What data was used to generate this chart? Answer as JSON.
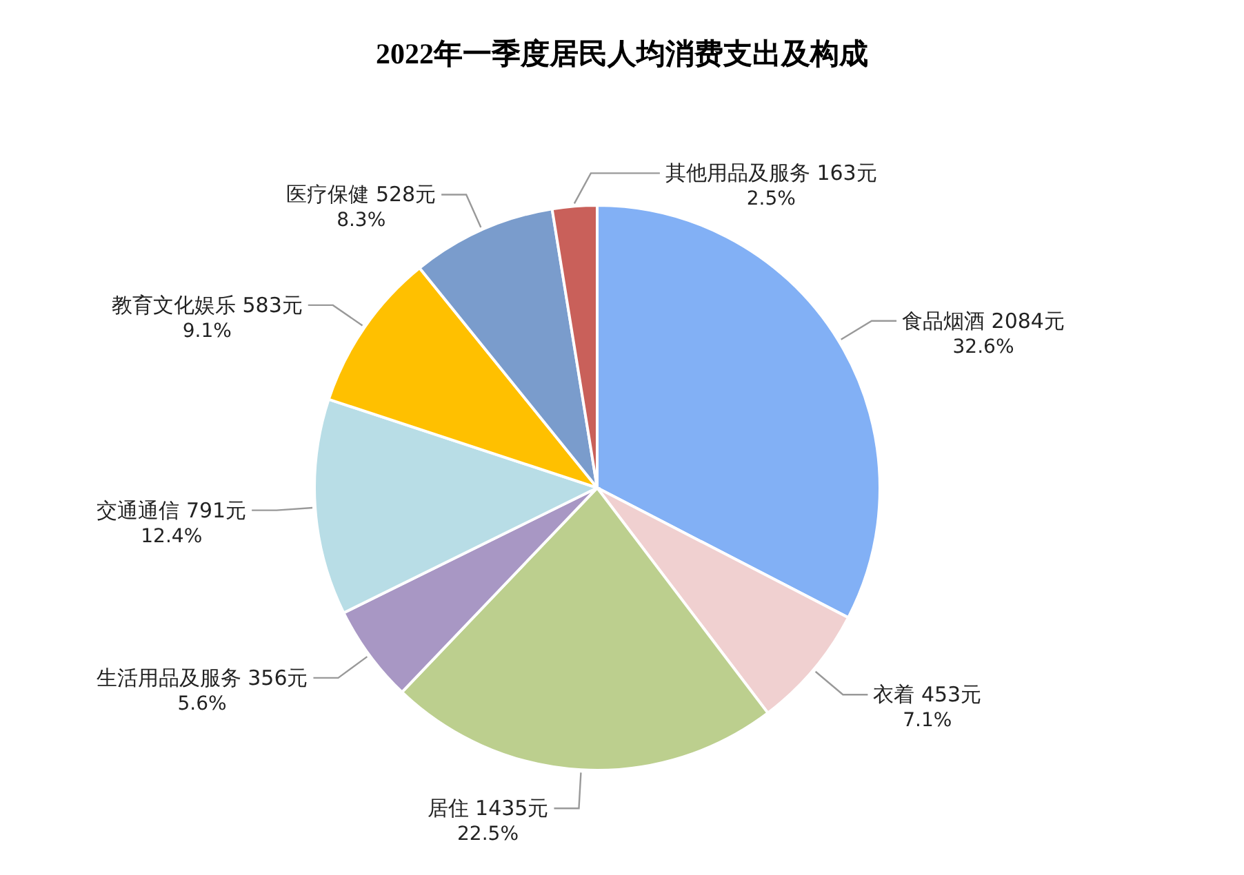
{
  "chart_data": {
    "type": "pie",
    "title": "2022年一季度居民人均消费支出及构成",
    "categories": [
      "食品烟酒",
      "衣着",
      "居住",
      "生活用品及服务",
      "交通通信",
      "教育文化娱乐",
      "医疗保健",
      "其他用品及服务"
    ],
    "values": [
      2084,
      453,
      1435,
      356,
      791,
      583,
      528,
      163
    ],
    "value_labels": [
      "2084元\n32.6%",
      "453元\n7.1%",
      "1435元\n22.5%",
      "356元\n5.6%",
      "791元\n12.4%",
      "583元\n9.1%",
      "528元\n8.3%",
      "163元\n2.5%"
    ],
    "colors": [
      "#82b0f5",
      "#f0d0d0",
      "#bccf8e",
      "#a897c4",
      "#b8dde6",
      "#ffc000",
      "#7a9ccc",
      "#c9605a"
    ]
  }
}
